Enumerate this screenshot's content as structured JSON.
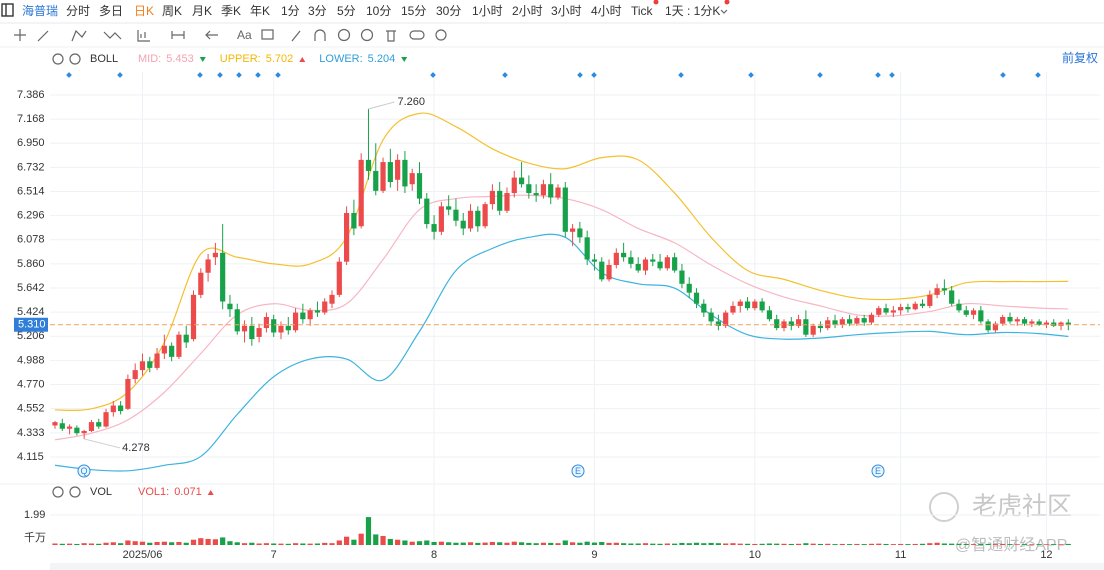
{
  "toolbar": {
    "symbol": "海普瑞",
    "periods": [
      "分时",
      "多日",
      "日K",
      "周K",
      "月K",
      "季K",
      "年K",
      "1分",
      "3分",
      "5分",
      "10分",
      "15分",
      "30分",
      "1小时",
      "2小时",
      "3小时",
      "4小时",
      "Tick",
      "1天 : 1分K"
    ],
    "tool_label": "Aa"
  },
  "chart_data": {
    "type": "candlestick",
    "indicator": {
      "name": "BOLL",
      "legend": [
        {
          "name": "MID:",
          "value": 5.453,
          "color": "#f4a3b4"
        },
        {
          "name": "UPPER:",
          "value": 5.702,
          "color": "#f2b705"
        },
        {
          "name": "LOWER:",
          "value": 5.204,
          "color": "#2f9fd8"
        }
      ],
      "adjust": "前复权"
    },
    "up_color": "#ec4b4b",
    "down_color": "#17a24a",
    "categories": [
      null,
      null,
      null,
      null,
      null,
      null,
      null,
      null,
      null,
      null,
      null,
      null,
      "2025/06",
      null,
      null,
      null,
      null,
      null,
      null,
      null,
      null,
      null,
      null,
      null,
      null,
      null,
      null,
      null,
      null,
      null,
      "7",
      null,
      null,
      null,
      null,
      null,
      null,
      null,
      null,
      null,
      null,
      null,
      null,
      null,
      null,
      null,
      null,
      null,
      null,
      null,
      null,
      null,
      "8",
      null,
      null,
      null,
      null,
      null,
      null,
      null,
      null,
      null,
      null,
      null,
      null,
      null,
      null,
      null,
      null,
      null,
      null,
      null,
      null,
      null,
      "9",
      null,
      null,
      null,
      null,
      null,
      null,
      null,
      null,
      null,
      null,
      null,
      null,
      null,
      null,
      null,
      null,
      null,
      null,
      null,
      null,
      null,
      "10",
      null,
      null,
      null,
      null,
      null,
      null,
      null,
      null,
      null,
      null,
      null,
      null,
      null,
      null,
      null,
      null,
      null,
      null,
      null,
      "11",
      null,
      null,
      null,
      null,
      null,
      null,
      null,
      null,
      null,
      null,
      null,
      null,
      null,
      null,
      null,
      null,
      null,
      null,
      null,
      "12",
      null,
      null,
      null
    ],
    "ohlc": [
      [
        4.4,
        4.44,
        4.37,
        4.43
      ],
      [
        4.42,
        4.46,
        4.35,
        4.37
      ],
      [
        4.37,
        4.41,
        4.32,
        4.39
      ],
      [
        4.38,
        4.4,
        4.31,
        4.33
      ],
      [
        4.33,
        4.36,
        4.278,
        4.35
      ],
      [
        4.35,
        4.45,
        4.34,
        4.43
      ],
      [
        4.43,
        4.46,
        4.37,
        4.39
      ],
      [
        4.39,
        4.55,
        4.38,
        4.52
      ],
      [
        4.52,
        4.62,
        4.48,
        4.58
      ],
      [
        4.58,
        4.62,
        4.5,
        4.53
      ],
      [
        4.55,
        4.86,
        4.54,
        4.82
      ],
      [
        4.82,
        4.96,
        4.78,
        4.9
      ],
      [
        4.9,
        5.05,
        4.85,
        4.98
      ],
      [
        4.98,
        5.02,
        4.88,
        4.92
      ],
      [
        4.92,
        5.1,
        4.9,
        5.05
      ],
      [
        5.05,
        5.22,
        5.0,
        5.12
      ],
      [
        5.12,
        5.15,
        4.98,
        5.02
      ],
      [
        5.02,
        5.25,
        5.0,
        5.22
      ],
      [
        5.22,
        5.3,
        5.1,
        5.15
      ],
      [
        5.18,
        5.62,
        5.16,
        5.58
      ],
      [
        5.58,
        5.82,
        5.55,
        5.78
      ],
      [
        5.78,
        5.95,
        5.7,
        5.9
      ],
      [
        5.92,
        6.05,
        5.85,
        5.96
      ],
      [
        5.96,
        6.22,
        5.45,
        5.52
      ],
      [
        5.5,
        5.58,
        5.38,
        5.45
      ],
      [
        5.45,
        5.5,
        5.22,
        5.25
      ],
      [
        5.25,
        5.35,
        5.15,
        5.3
      ],
      [
        5.3,
        5.38,
        5.12,
        5.18
      ],
      [
        5.2,
        5.32,
        5.15,
        5.28
      ],
      [
        5.28,
        5.42,
        5.24,
        5.38
      ],
      [
        5.36,
        5.4,
        5.2,
        5.24
      ],
      [
        5.24,
        5.34,
        5.18,
        5.3
      ],
      [
        5.3,
        5.38,
        5.22,
        5.26
      ],
      [
        5.26,
        5.46,
        5.24,
        5.42
      ],
      [
        5.42,
        5.5,
        5.32,
        5.36
      ],
      [
        5.36,
        5.46,
        5.3,
        5.44
      ],
      [
        5.44,
        5.52,
        5.38,
        5.42
      ],
      [
        5.42,
        5.55,
        5.4,
        5.52
      ],
      [
        5.5,
        5.62,
        5.46,
        5.58
      ],
      [
        5.58,
        5.92,
        5.56,
        5.88
      ],
      [
        5.88,
        6.38,
        5.85,
        6.32
      ],
      [
        6.32,
        6.44,
        6.12,
        6.18
      ],
      [
        6.2,
        6.86,
        6.18,
        6.8
      ],
      [
        6.8,
        7.26,
        6.62,
        6.7
      ],
      [
        6.7,
        6.95,
        6.48,
        6.52
      ],
      [
        6.52,
        6.82,
        6.5,
        6.78
      ],
      [
        6.78,
        6.9,
        6.55,
        6.6
      ],
      [
        6.62,
        6.85,
        6.52,
        6.8
      ],
      [
        6.8,
        6.88,
        6.5,
        6.56
      ],
      [
        6.58,
        6.72,
        6.52,
        6.68
      ],
      [
        6.68,
        6.78,
        6.4,
        6.45
      ],
      [
        6.45,
        6.5,
        6.18,
        6.22
      ],
      [
        6.22,
        6.3,
        6.08,
        6.15
      ],
      [
        6.15,
        6.42,
        6.12,
        6.38
      ],
      [
        6.38,
        6.48,
        6.3,
        6.35
      ],
      [
        6.35,
        6.45,
        6.2,
        6.25
      ],
      [
        6.25,
        6.32,
        6.12,
        6.18
      ],
      [
        6.18,
        6.4,
        6.15,
        6.34
      ],
      [
        6.34,
        6.38,
        6.15,
        6.2
      ],
      [
        6.2,
        6.42,
        6.18,
        6.4
      ],
      [
        6.4,
        6.58,
        6.35,
        6.52
      ],
      [
        6.52,
        6.6,
        6.3,
        6.34
      ],
      [
        6.34,
        6.55,
        6.32,
        6.5
      ],
      [
        6.5,
        6.7,
        6.46,
        6.64
      ],
      [
        6.64,
        6.78,
        6.55,
        6.58
      ],
      [
        6.58,
        6.66,
        6.45,
        6.5
      ],
      [
        6.5,
        6.58,
        6.42,
        6.48
      ],
      [
        6.48,
        6.62,
        6.45,
        6.58
      ],
      [
        6.58,
        6.68,
        6.4,
        6.46
      ],
      [
        6.46,
        6.58,
        6.44,
        6.55
      ],
      [
        6.55,
        6.6,
        6.1,
        6.15
      ],
      [
        6.15,
        6.22,
        6.02,
        6.18
      ],
      [
        6.18,
        6.24,
        6.05,
        6.1
      ],
      [
        6.1,
        6.16,
        5.85,
        5.9
      ],
      [
        5.9,
        5.95,
        5.8,
        5.88
      ],
      [
        5.88,
        5.92,
        5.7,
        5.72
      ],
      [
        5.72,
        5.9,
        5.7,
        5.85
      ],
      [
        5.85,
        6.0,
        5.82,
        5.96
      ],
      [
        5.96,
        6.05,
        5.88,
        5.92
      ],
      [
        5.92,
        5.98,
        5.82,
        5.86
      ],
      [
        5.86,
        5.92,
        5.78,
        5.8
      ],
      [
        5.8,
        5.92,
        5.76,
        5.9
      ],
      [
        5.9,
        5.95,
        5.84,
        5.88
      ],
      [
        5.88,
        5.95,
        5.8,
        5.82
      ],
      [
        5.82,
        5.94,
        5.8,
        5.92
      ],
      [
        5.92,
        5.96,
        5.78,
        5.8
      ],
      [
        5.8,
        5.86,
        5.64,
        5.68
      ],
      [
        5.68,
        5.74,
        5.55,
        5.6
      ],
      [
        5.6,
        5.64,
        5.46,
        5.5
      ],
      [
        5.5,
        5.54,
        5.38,
        5.42
      ],
      [
        5.42,
        5.46,
        5.3,
        5.34
      ],
      [
        5.34,
        5.4,
        5.26,
        5.3
      ],
      [
        5.3,
        5.44,
        5.28,
        5.42
      ],
      [
        5.42,
        5.52,
        5.4,
        5.48
      ],
      [
        5.48,
        5.54,
        5.42,
        5.52
      ],
      [
        5.52,
        5.56,
        5.44,
        5.46
      ],
      [
        5.46,
        5.54,
        5.44,
        5.52
      ],
      [
        5.52,
        5.55,
        5.42,
        5.44
      ],
      [
        5.44,
        5.48,
        5.34,
        5.36
      ],
      [
        5.36,
        5.4,
        5.26,
        5.28
      ],
      [
        5.28,
        5.36,
        5.25,
        5.34
      ],
      [
        5.34,
        5.38,
        5.26,
        5.3
      ],
      [
        5.3,
        5.4,
        5.28,
        5.36
      ],
      [
        5.36,
        5.44,
        5.2,
        5.22
      ],
      [
        5.22,
        5.32,
        5.2,
        5.3
      ],
      [
        5.3,
        5.34,
        5.24,
        5.28
      ],
      [
        5.28,
        5.38,
        5.26,
        5.35
      ],
      [
        5.35,
        5.4,
        5.28,
        5.31
      ],
      [
        5.31,
        5.38,
        5.28,
        5.36
      ],
      [
        5.36,
        5.4,
        5.3,
        5.32
      ],
      [
        5.32,
        5.39,
        5.3,
        5.37
      ],
      [
        5.37,
        5.4,
        5.3,
        5.33
      ],
      [
        5.33,
        5.42,
        5.31,
        5.4
      ],
      [
        5.4,
        5.48,
        5.38,
        5.46
      ],
      [
        5.46,
        5.5,
        5.4,
        5.42
      ],
      [
        5.42,
        5.48,
        5.38,
        5.44
      ],
      [
        5.44,
        5.5,
        5.4,
        5.47
      ],
      [
        5.47,
        5.5,
        5.42,
        5.45
      ],
      [
        5.45,
        5.52,
        5.44,
        5.5
      ],
      [
        5.5,
        5.54,
        5.46,
        5.48
      ],
      [
        5.48,
        5.62,
        5.46,
        5.58
      ],
      [
        5.58,
        5.68,
        5.55,
        5.64
      ],
      [
        5.64,
        5.72,
        5.58,
        5.62
      ],
      [
        5.62,
        5.66,
        5.48,
        5.5
      ],
      [
        5.5,
        5.54,
        5.42,
        5.44
      ],
      [
        5.44,
        5.48,
        5.38,
        5.4
      ],
      [
        5.4,
        5.46,
        5.36,
        5.44
      ],
      [
        5.44,
        5.48,
        5.32,
        5.34
      ],
      [
        5.34,
        5.36,
        5.24,
        5.26
      ],
      [
        5.26,
        5.34,
        5.24,
        5.32
      ],
      [
        5.32,
        5.4,
        5.3,
        5.38
      ],
      [
        5.38,
        5.42,
        5.32,
        5.34
      ],
      [
        5.34,
        5.38,
        5.3,
        5.36
      ],
      [
        5.36,
        5.38,
        5.3,
        5.32
      ],
      [
        5.32,
        5.36,
        5.29,
        5.34
      ],
      [
        5.34,
        5.36,
        5.3,
        5.31
      ],
      [
        5.31,
        5.35,
        5.28,
        5.33
      ],
      [
        5.33,
        5.36,
        5.29,
        5.3
      ],
      [
        5.3,
        5.34,
        5.26,
        5.33
      ],
      [
        5.33,
        5.36,
        5.26,
        5.31
      ]
    ],
    "boll": {
      "x": [
        0,
        5,
        10,
        15,
        20,
        25,
        30,
        35,
        40,
        45,
        50,
        55,
        60,
        65,
        70,
        75,
        80,
        85,
        90,
        95,
        100,
        105,
        110,
        115,
        120,
        125,
        130,
        135,
        139
      ],
      "series": [
        {
          "name": "UPPER",
          "color": "#f5c02e",
          "values": [
            4.54,
            4.55,
            4.7,
            5.15,
            5.95,
            5.92,
            5.86,
            5.86,
            6.1,
            6.98,
            7.22,
            7.1,
            6.9,
            6.77,
            6.72,
            6.82,
            6.8,
            6.5,
            6.1,
            5.8,
            5.72,
            5.62,
            5.55,
            5.54,
            5.58,
            5.69,
            5.7,
            5.7,
            5.702
          ]
        },
        {
          "name": "MID",
          "color": "#f7b6c3",
          "values": [
            4.27,
            4.33,
            4.45,
            4.7,
            5.05,
            5.4,
            5.5,
            5.44,
            5.5,
            5.9,
            6.35,
            6.45,
            6.47,
            6.48,
            6.45,
            6.35,
            6.18,
            6.05,
            5.85,
            5.68,
            5.56,
            5.48,
            5.4,
            5.39,
            5.43,
            5.5,
            5.48,
            5.46,
            5.453
          ]
        },
        {
          "name": "LOWER",
          "color": "#3db3e0",
          "values": [
            4.04,
            4.0,
            3.99,
            4.04,
            4.12,
            4.5,
            4.84,
            5.0,
            5.0,
            4.81,
            5.25,
            5.8,
            6.0,
            6.1,
            6.1,
            5.78,
            5.68,
            5.64,
            5.4,
            5.22,
            5.18,
            5.19,
            5.22,
            5.24,
            5.25,
            5.22,
            5.24,
            5.23,
            5.204
          ]
        }
      ]
    },
    "ylim": [
      3.907,
      7.594
    ],
    "yticks": [
      7.386,
      7.168,
      {
        "value": 6.95,
        "label": "6.950"
      },
      6.732,
      6.514,
      6.296,
      6.078,
      {
        "value": 5.86,
        "label": "5.860"
      },
      5.642,
      5.424,
      5.206,
      4.988,
      {
        "value": 4.77,
        "label": "4.770"
      },
      4.552,
      4.333,
      4.115
    ],
    "last_price": {
      "value": 5.31,
      "label": "5.310"
    },
    "max_marker": {
      "value": 7.26,
      "label": "7.260"
    },
    "min_marker": {
      "value": 4.278,
      "label": "4.278"
    },
    "event_markers": [
      "Q",
      "E",
      "E"
    ],
    "volume": {
      "name": "VOL",
      "legend": {
        "name": "VOL1:",
        "value": 0.071
      },
      "unit": "千万",
      "ylim": [
        0,
        2.65
      ],
      "yticks": [
        1.99
      ],
      "values": [
        0.1,
        0.08,
        0.09,
        0.07,
        0.12,
        0.1,
        0.08,
        0.15,
        0.18,
        0.12,
        0.3,
        0.25,
        0.22,
        0.15,
        0.2,
        0.22,
        0.18,
        0.2,
        0.15,
        0.35,
        0.45,
        0.4,
        0.38,
        0.5,
        0.25,
        0.18,
        0.12,
        0.15,
        0.1,
        0.12,
        0.1,
        0.09,
        0.08,
        0.12,
        0.1,
        0.09,
        0.1,
        0.14,
        0.12,
        0.3,
        0.55,
        0.35,
        0.75,
        1.85,
        0.7,
        0.6,
        0.4,
        0.35,
        0.3,
        0.22,
        0.25,
        0.3,
        0.2,
        0.22,
        0.18,
        0.15,
        0.16,
        0.18,
        0.14,
        0.16,
        0.2,
        0.18,
        0.15,
        0.22,
        0.18,
        0.14,
        0.12,
        0.15,
        0.14,
        0.12,
        0.3,
        0.18,
        0.15,
        0.22,
        0.16,
        0.2,
        0.14,
        0.15,
        0.12,
        0.1,
        0.1,
        0.12,
        0.09,
        0.08,
        0.1,
        0.09,
        0.14,
        0.12,
        0.15,
        0.12,
        0.14,
        0.12,
        0.1,
        0.12,
        0.09,
        0.08,
        0.07,
        0.08,
        0.1,
        0.09,
        0.08,
        0.07,
        0.08,
        0.12,
        0.09,
        0.07,
        0.08,
        0.06,
        0.07,
        0.06,
        0.07,
        0.06,
        0.08,
        0.09,
        0.07,
        0.06,
        0.07,
        0.06,
        0.07,
        0.08,
        0.12,
        0.15,
        0.1,
        0.09,
        0.08,
        0.07,
        0.06,
        0.08,
        0.07,
        0.06,
        0.07,
        0.06,
        0.05,
        0.06,
        0.05,
        0.06,
        0.05,
        0.06,
        0.05,
        0.071
      ]
    },
    "watermarks": [
      "老虎社区",
      "@智通财经APP"
    ]
  }
}
